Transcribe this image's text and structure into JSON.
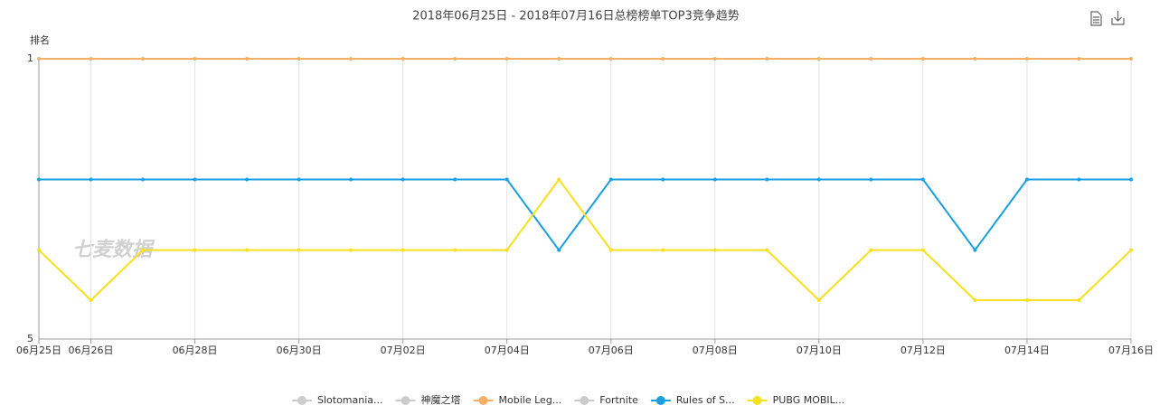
{
  "chart_data": {
    "type": "line",
    "title": "2018年06月25日 - 2018年07月16日总榜榜单TOP3竞争趋势",
    "y_label": "排名",
    "watermark": "七麦数据",
    "categories": [
      "06月25日",
      "06月26日",
      null,
      "06月28日",
      null,
      "06月30日",
      null,
      "07月02日",
      null,
      "07月04日",
      null,
      "07月06日",
      null,
      "07月08日",
      null,
      "07月10日",
      null,
      "07月12日",
      null,
      "07月14日",
      null,
      "07月16日"
    ],
    "ylim": [
      1,
      5
    ],
    "yticks": [
      1,
      5
    ],
    "log_scale": true,
    "y_inverted": true,
    "grid": true,
    "legend": "bottom",
    "series": [
      {
        "name": "Slotomania...",
        "color": "#cccccc",
        "visible": false
      },
      {
        "name": "神魔之塔",
        "color": "#cccccc",
        "visible": false
      },
      {
        "name": "Mobile Leg...",
        "color": "#f5b066",
        "values": [
          1,
          1,
          1,
          1,
          1,
          1,
          1,
          1,
          1,
          1,
          1,
          1,
          1,
          1,
          1,
          1,
          1,
          1,
          1,
          1,
          1,
          1
        ]
      },
      {
        "name": "Fortnite",
        "color": "#cccccc",
        "visible": false
      },
      {
        "name": "Rules of S...",
        "color": "#1a9fe0",
        "values": [
          2,
          2,
          2,
          2,
          2,
          2,
          2,
          2,
          2,
          2,
          3,
          2,
          2,
          2,
          2,
          2,
          2,
          2,
          3,
          2,
          2,
          2
        ]
      },
      {
        "name": "PUBG MOBIL...",
        "color": "#f7e01c",
        "values": [
          3,
          4,
          3,
          3,
          3,
          3,
          3,
          3,
          3,
          3,
          2,
          3,
          3,
          3,
          3,
          4,
          3,
          3,
          4,
          4,
          4,
          3
        ]
      }
    ]
  }
}
